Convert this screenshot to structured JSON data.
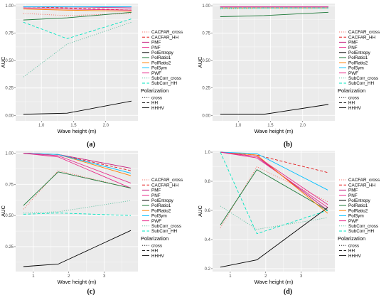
{
  "colors": {
    "panel_bg": "#ebebeb",
    "grid": "#ffffff",
    "CACFAR_cross": "#f8766d",
    "CACFAR_HH": "#e31a1c",
    "PMF": "#c51b7d",
    "PNF": "#e7298a",
    "PolEntropy": "#000000",
    "PolRatio1": "#1b7837",
    "PolRatio2": "#ff7f00",
    "PolSym": "#00bfff",
    "PWF": "#e7298a",
    "SubCorr_cross": "#66c2a5",
    "SubCorr_HH": "#00e5c0"
  },
  "legend": {
    "method_entries": [
      "CACFAR_cross",
      "CACFAR_HH",
      "PMF",
      "PNF",
      "PolEntropy",
      "PolRatio1",
      "PolRatio2",
      "PolSym",
      "PWF",
      "SubCorr_cross",
      "SubCorr_HH"
    ],
    "polarization_title": "Polarization",
    "polarization_entries": [
      "cross",
      "HH",
      "HHHV"
    ]
  },
  "chart_data": [
    {
      "type": "line",
      "caption": "(a)",
      "xlabel": "Wave height (m)",
      "ylabel": "AUC",
      "xlim": [
        0.6,
        2.5
      ],
      "ylim": [
        -0.05,
        1.02
      ],
      "xticks": [
        1.0,
        1.5,
        2.0
      ],
      "xtick_labels": [
        "1.0",
        "1.5",
        "2.0"
      ],
      "yticks": [
        0,
        0.25,
        0.5,
        0.75,
        1.0
      ],
      "ytick_labels": [
        "0.00",
        "0.25",
        "0.50",
        "0.75",
        "1.00"
      ],
      "x": [
        0.72,
        1.4,
        2.4
      ],
      "series": [
        {
          "name": "CACFAR_cross",
          "polarization": "cross",
          "values": [
            0.93,
            0.91,
            0.93
          ]
        },
        {
          "name": "CACFAR_HH",
          "polarization": "HH",
          "values": [
            0.99,
            0.98,
            0.96
          ]
        },
        {
          "name": "PMF",
          "polarization": "HHHV",
          "values": [
            0.99,
            0.99,
            0.99
          ]
        },
        {
          "name": "PNF",
          "polarization": "HHHV",
          "values": [
            0.99,
            0.99,
            0.98
          ]
        },
        {
          "name": "PolEntropy",
          "polarization": "HHHV",
          "values": [
            0.01,
            0.02,
            0.13
          ]
        },
        {
          "name": "PolRatio1",
          "polarization": "HHHV",
          "values": [
            0.87,
            0.89,
            0.94
          ]
        },
        {
          "name": "PolRatio2",
          "polarization": "HHHV",
          "values": [
            0.97,
            0.96,
            0.95
          ]
        },
        {
          "name": "PolSym",
          "polarization": "HHHV",
          "values": [
            0.99,
            0.99,
            0.99
          ]
        },
        {
          "name": "PWF",
          "polarization": "HHHV",
          "values": [
            0.98,
            0.97,
            0.96
          ]
        },
        {
          "name": "SubCorr_cross",
          "polarization": "cross",
          "values": [
            0.35,
            0.65,
            0.85
          ]
        },
        {
          "name": "SubCorr_HH",
          "polarization": "HH",
          "values": [
            0.85,
            0.7,
            0.88
          ]
        }
      ]
    },
    {
      "type": "line",
      "caption": "(b)",
      "xlabel": "Wave height (m)",
      "ylabel": "AUC",
      "xlim": [
        0.6,
        2.5
      ],
      "ylim": [
        -0.05,
        1.02
      ],
      "xticks": [
        1.0,
        1.5,
        2.0
      ],
      "xtick_labels": [
        "1.0",
        "1.5",
        "2.0"
      ],
      "yticks": [
        0,
        0.25,
        0.5,
        0.75,
        1.0
      ],
      "ytick_labels": [
        "0.00",
        "0.25",
        "0.50",
        "0.75",
        "1.00"
      ],
      "x": [
        0.72,
        1.4,
        2.4
      ],
      "series": [
        {
          "name": "CACFAR_cross",
          "polarization": "cross",
          "values": [
            0.98,
            0.98,
            0.98
          ]
        },
        {
          "name": "CACFAR_HH",
          "polarization": "HH",
          "values": [
            0.99,
            0.99,
            0.99
          ]
        },
        {
          "name": "PMF",
          "polarization": "HHHV",
          "values": [
            0.99,
            0.99,
            0.99
          ]
        },
        {
          "name": "PNF",
          "polarization": "HHHV",
          "values": [
            0.99,
            0.99,
            0.99
          ]
        },
        {
          "name": "PolEntropy",
          "polarization": "HHHV",
          "values": [
            0.01,
            0.01,
            0.1
          ]
        },
        {
          "name": "PolRatio1",
          "polarization": "HHHV",
          "values": [
            0.9,
            0.91,
            0.94
          ]
        },
        {
          "name": "PolRatio2",
          "polarization": "HHHV",
          "values": [
            0.98,
            0.98,
            0.98
          ]
        },
        {
          "name": "PolSym",
          "polarization": "HHHV",
          "values": [
            0.99,
            0.99,
            0.99
          ]
        },
        {
          "name": "PWF",
          "polarization": "HHHV",
          "values": [
            0.99,
            0.99,
            0.99
          ]
        },
        {
          "name": "SubCorr_cross",
          "polarization": "cross",
          "values": [
            0.97,
            0.98,
            0.98
          ]
        },
        {
          "name": "SubCorr_HH",
          "polarization": "HH",
          "values": [
            0.98,
            0.98,
            0.98
          ]
        }
      ]
    },
    {
      "type": "line",
      "caption": "(c)",
      "xlabel": "Wave height (m)",
      "ylabel": "AUC",
      "xlim": [
        0.5,
        3.95
      ],
      "ylim": [
        0.05,
        1.02
      ],
      "xticks": [
        1,
        2,
        3
      ],
      "xtick_labels": [
        "1",
        "2",
        "3"
      ],
      "yticks": [
        0.25,
        0.5,
        0.75,
        1.0
      ],
      "ytick_labels": [
        "0.25",
        "0.50",
        "0.75",
        "1.00"
      ],
      "x": [
        0.72,
        1.7,
        3.75
      ],
      "series": [
        {
          "name": "CACFAR_cross",
          "polarization": "cross",
          "values": [
            0.55,
            0.86,
            0.72
          ]
        },
        {
          "name": "CACFAR_HH",
          "polarization": "HH",
          "values": [
            1.0,
            0.99,
            0.86
          ]
        },
        {
          "name": "PMF",
          "polarization": "HHHV",
          "values": [
            1.0,
            0.99,
            0.88
          ]
        },
        {
          "name": "PNF",
          "polarization": "HHHV",
          "values": [
            1.0,
            0.97,
            0.72
          ]
        },
        {
          "name": "PolEntropy",
          "polarization": "HHHV",
          "values": [
            0.09,
            0.11,
            0.38
          ]
        },
        {
          "name": "PolRatio1",
          "polarization": "HHHV",
          "values": [
            0.58,
            0.85,
            0.72
          ]
        },
        {
          "name": "PolRatio2",
          "polarization": "HHHV",
          "values": [
            1.0,
            0.99,
            0.82
          ]
        },
        {
          "name": "PolSym",
          "polarization": "HHHV",
          "values": [
            1.0,
            0.99,
            0.84
          ]
        },
        {
          "name": "PWF",
          "polarization": "HHHV",
          "values": [
            1.0,
            0.98,
            0.76
          ]
        },
        {
          "name": "SubCorr_cross",
          "polarization": "cross",
          "values": [
            0.52,
            0.53,
            0.62
          ]
        },
        {
          "name": "SubCorr_HH",
          "polarization": "HH",
          "values": [
            0.51,
            0.52,
            0.5
          ]
        }
      ]
    },
    {
      "type": "line",
      "caption": "(d)",
      "xlabel": "Wave height (m)",
      "ylabel": "AUC",
      "xlim": [
        0.5,
        3.95
      ],
      "ylim": [
        0.18,
        1.01
      ],
      "xticks": [
        1,
        2,
        3
      ],
      "xtick_labels": [
        "1",
        "2",
        "3"
      ],
      "yticks": [
        0.2,
        0.4,
        0.6,
        0.8,
        1.0
      ],
      "ytick_labels": [
        "0.2",
        "0.4",
        "0.6",
        "0.8",
        "1.0"
      ],
      "x": [
        0.72,
        1.75,
        3.75
      ],
      "series": [
        {
          "name": "CACFAR_cross",
          "polarization": "cross",
          "values": [
            0.48,
            0.9,
            0.66
          ]
        },
        {
          "name": "CACFAR_HH",
          "polarization": "HH",
          "values": [
            1.0,
            0.98,
            0.86
          ]
        },
        {
          "name": "PMF",
          "polarization": "HHHV",
          "values": [
            1.0,
            0.97,
            0.6
          ]
        },
        {
          "name": "PNF",
          "polarization": "HHHV",
          "values": [
            1.0,
            0.96,
            0.62
          ]
        },
        {
          "name": "PolEntropy",
          "polarization": "HHHV",
          "values": [
            0.21,
            0.26,
            0.62
          ]
        },
        {
          "name": "PolRatio1",
          "polarization": "HHHV",
          "values": [
            0.5,
            0.88,
            0.6
          ]
        },
        {
          "name": "PolRatio2",
          "polarization": "HHHV",
          "values": [
            1.0,
            0.98,
            0.58
          ]
        },
        {
          "name": "PolSym",
          "polarization": "HHHV",
          "values": [
            1.0,
            0.99,
            0.74
          ]
        },
        {
          "name": "PWF",
          "polarization": "HHHV",
          "values": [
            1.0,
            0.97,
            0.64
          ]
        },
        {
          "name": "SubCorr_cross",
          "polarization": "cross",
          "values": [
            0.63,
            0.47,
            0.55
          ]
        },
        {
          "name": "SubCorr_HH",
          "polarization": "HH",
          "values": [
            1.0,
            0.44,
            0.6
          ]
        }
      ]
    }
  ]
}
